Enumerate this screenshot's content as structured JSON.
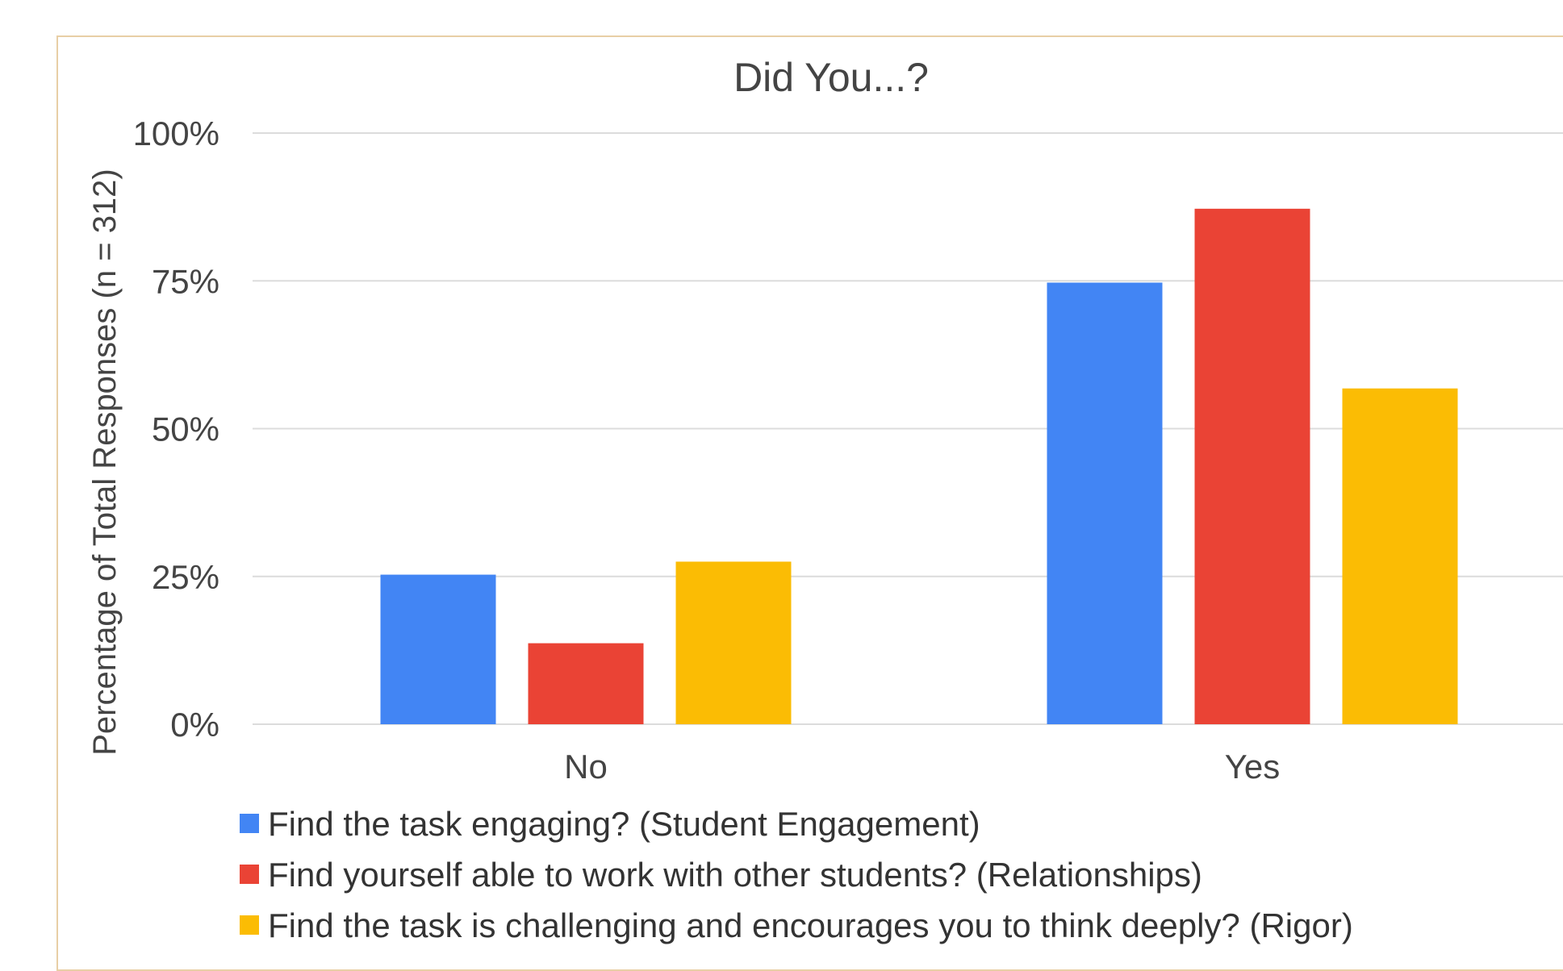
{
  "chart_data": {
    "type": "bar",
    "title": "Did You...?",
    "xlabel": "",
    "ylabel": "Percentage of Total Responses (n = 312)",
    "categories": [
      "No",
      "Yes"
    ],
    "ylim": [
      0,
      100
    ],
    "yticks": [
      "0%",
      "25%",
      "50%",
      "75%",
      "100%"
    ],
    "ytick_values": [
      0,
      25,
      50,
      75,
      100
    ],
    "grid": true,
    "legend_position": "bottom",
    "series": [
      {
        "name": "Find the task engaging? (Student Engagement)",
        "color": "#4285f4",
        "values": [
          25.3,
          74.7
        ]
      },
      {
        "name": "Find yourself able to work with other students? (Relationships)",
        "color": "#ea4335",
        "values": [
          13.7,
          87.2
        ]
      },
      {
        "name": "Find the task is challenging and encourages you to think deeply? (Rigor)",
        "color": "#fbbc04",
        "values": [
          27.5,
          56.8
        ]
      }
    ]
  }
}
